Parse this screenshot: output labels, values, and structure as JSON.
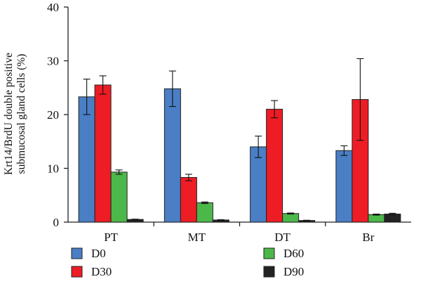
{
  "chart_data": {
    "type": "bar",
    "categories": [
      "PT",
      "MT",
      "DT",
      "Br"
    ],
    "series": [
      {
        "name": "D0",
        "color": "#4a7ec5",
        "values": [
          23.3,
          24.8,
          14.0,
          13.3
        ],
        "errors": [
          3.3,
          3.3,
          2.0,
          0.9
        ]
      },
      {
        "name": "D30",
        "color": "#ee1c24",
        "values": [
          25.5,
          8.3,
          21.0,
          22.8
        ],
        "errors": [
          1.7,
          0.6,
          1.6,
          7.6
        ]
      },
      {
        "name": "D60",
        "color": "#4cb84a",
        "values": [
          9.3,
          3.6,
          1.6,
          1.4
        ],
        "errors": [
          0.4,
          0.15,
          0.1,
          0.1
        ]
      },
      {
        "name": "D90",
        "color": "#222222",
        "values": [
          0.5,
          0.4,
          0.3,
          1.5
        ],
        "errors": [
          0.05,
          0.05,
          0.05,
          0.15
        ]
      }
    ],
    "ylabel_line1": "Krt14/BrdU double positive",
    "ylabel_line2": "submucosal gland cells (%)",
    "xlabel": "",
    "ylim": [
      0,
      40
    ],
    "yticks": [
      0,
      10,
      20,
      30,
      40
    ],
    "grid": false,
    "legend_position": "bottom"
  }
}
